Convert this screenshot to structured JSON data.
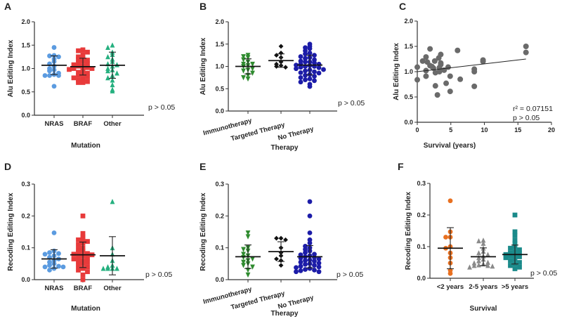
{
  "chart_data": [
    {
      "panel": "A",
      "type": "scatter",
      "ylabel": "Alu Editing Index",
      "xlabel": "Mutation",
      "ylim": [
        0,
        2.0
      ],
      "yticks": [
        "0.0",
        "0.5",
        "1.0",
        "1.5",
        "2.0"
      ],
      "annotation": [
        "p > 0.05"
      ],
      "groups": [
        {
          "name": "NRAS",
          "color": "#5b9be0",
          "marker": "circle",
          "mean": 1.07,
          "sd": 0.2,
          "values": [
            1.45,
            1.28,
            1.27,
            1.25,
            1.2,
            1.15,
            1.1,
            1.05,
            1.0,
            0.97,
            0.95,
            0.9,
            0.87,
            0.85,
            0.85,
            0.85,
            0.62
          ]
        },
        {
          "name": "BRAF",
          "color": "#e83a3a",
          "marker": "square",
          "mean": 1.04,
          "sd": 0.18,
          "values": [
            1.4,
            1.38,
            1.35,
            1.3,
            1.25,
            1.22,
            1.2,
            1.18,
            1.15,
            1.12,
            1.1,
            1.08,
            1.05,
            1.05,
            1.02,
            1.0,
            1.0,
            0.98,
            0.95,
            0.92,
            0.9,
            0.88,
            0.85,
            0.82,
            0.8,
            0.78,
            0.75,
            0.72,
            0.7,
            0.7
          ]
        },
        {
          "name": "Other",
          "color": "#25b07f",
          "marker": "triangle-up",
          "mean": 1.07,
          "sd": 0.28,
          "values": [
            1.5,
            1.45,
            1.35,
            1.3,
            1.25,
            1.2,
            1.15,
            1.1,
            1.08,
            1.05,
            1.0,
            0.97,
            0.95,
            0.9,
            0.85,
            0.8,
            0.75,
            0.65,
            0.55,
            0.52
          ]
        }
      ]
    },
    {
      "panel": "B",
      "type": "scatter",
      "ylabel": "Alu Editing Index",
      "xlabel": "Therapy",
      "ylim": [
        0,
        2.0
      ],
      "yticks": [
        "0.0",
        "0.5",
        "1.0",
        "1.5",
        "2.0"
      ],
      "annotation": [
        "p > 0.05"
      ],
      "groups": [
        {
          "name": "Immunotherapy",
          "color": "#2e8b2e",
          "marker": "triangle-down",
          "mean": 1.0,
          "sd": 0.17,
          "values": [
            1.25,
            1.22,
            1.2,
            1.15,
            1.1,
            1.05,
            1.05,
            1.02,
            1.0,
            0.95,
            0.92,
            0.9,
            0.85,
            0.8,
            0.75,
            0.72
          ]
        },
        {
          "name": "Targeted Therapy",
          "color": "#111111",
          "marker": "diamond",
          "mean": 1.13,
          "sd": 0.15,
          "values": [
            1.45,
            1.3,
            1.25,
            1.2,
            1.1,
            1.05,
            1.02,
            1.0,
            0.98
          ]
        },
        {
          "name": "No Therapy",
          "color": "#1c1ca8",
          "marker": "circle",
          "mean": 1.03,
          "sd": 0.22,
          "values": [
            1.5,
            1.45,
            1.42,
            1.4,
            1.35,
            1.3,
            1.28,
            1.25,
            1.22,
            1.2,
            1.18,
            1.15,
            1.12,
            1.1,
            1.1,
            1.08,
            1.05,
            1.05,
            1.03,
            1.02,
            1.0,
            1.0,
            0.98,
            0.97,
            0.95,
            0.93,
            0.92,
            0.9,
            0.88,
            0.86,
            0.85,
            0.82,
            0.8,
            0.78,
            0.75,
            0.72,
            0.7,
            0.68,
            0.65,
            0.6,
            0.55
          ]
        }
      ]
    },
    {
      "panel": "C",
      "type": "scatter",
      "ylabel": "Alu Editing Index",
      "xlabel": "Survival (years)",
      "ylim": [
        0,
        2.0
      ],
      "xlim": [
        0,
        20
      ],
      "yticks": [
        "0.0",
        "0.5",
        "1.0",
        "1.5",
        "2.0"
      ],
      "xticks": [
        "0",
        "5",
        "10",
        "15",
        "20"
      ],
      "annotation": [
        "r² = 0.07151",
        "p > 0.05"
      ],
      "color": "#6a6a6a",
      "regression": {
        "x": [
          0,
          16.2
        ],
        "y": [
          1.0,
          1.25
        ]
      },
      "points": [
        [
          0,
          1.09
        ],
        [
          0,
          0.84
        ],
        [
          0.8,
          1.21
        ],
        [
          1.3,
          1.29
        ],
        [
          1.5,
          1.19
        ],
        [
          1.3,
          1.02
        ],
        [
          1.3,
          0.91
        ],
        [
          1.9,
          1.45
        ],
        [
          1.9,
          1.12
        ],
        [
          2.2,
          1.1
        ],
        [
          2.4,
          1.07
        ],
        [
          2.6,
          1.21
        ],
        [
          2.7,
          0.98
        ],
        [
          2.7,
          0.72
        ],
        [
          3.0,
          0.54
        ],
        [
          3.2,
          1.27
        ],
        [
          3.5,
          1.34
        ],
        [
          3.5,
          1.17
        ],
        [
          3.5,
          1.14
        ],
        [
          3.3,
          1.08
        ],
        [
          3.3,
          1.0
        ],
        [
          4.0,
          1.03
        ],
        [
          4.3,
          0.77
        ],
        [
          4.6,
          1.09
        ],
        [
          4.9,
          0.91
        ],
        [
          4.9,
          0.61
        ],
        [
          6.0,
          1.42
        ],
        [
          6.4,
          0.85
        ],
        [
          8.5,
          1.05
        ],
        [
          8.5,
          1.0
        ],
        [
          8.5,
          0.71
        ],
        [
          9.8,
          1.23
        ],
        [
          9.8,
          1.2
        ],
        [
          16.2,
          1.5
        ],
        [
          16.2,
          1.38
        ]
      ]
    },
    {
      "panel": "D",
      "type": "scatter",
      "ylabel": "Recoding Editing Index",
      "xlabel": "Mutation",
      "ylim": [
        0,
        0.3
      ],
      "yticks": [
        "0.0",
        "0.1",
        "0.2",
        "0.3"
      ],
      "annotation": [
        "p > 0.05"
      ],
      "groups": [
        {
          "name": "NRAS",
          "color": "#5b9be0",
          "marker": "circle",
          "mean": 0.065,
          "sd": 0.029,
          "values": [
            0.147,
            0.09,
            0.085,
            0.082,
            0.08,
            0.075,
            0.07,
            0.065,
            0.06,
            0.055,
            0.05,
            0.045,
            0.042,
            0.04,
            0.04,
            0.035,
            0.03
          ]
        },
        {
          "name": "BRAF",
          "color": "#e83a3a",
          "marker": "square",
          "mean": 0.078,
          "sd": 0.04,
          "values": [
            0.2,
            0.145,
            0.135,
            0.13,
            0.125,
            0.12,
            0.115,
            0.11,
            0.1,
            0.095,
            0.09,
            0.085,
            0.082,
            0.08,
            0.078,
            0.075,
            0.07,
            0.068,
            0.065,
            0.06,
            0.058,
            0.055,
            0.05,
            0.045,
            0.04,
            0.035,
            0.03,
            0.025,
            0.015,
            0.0
          ]
        },
        {
          "name": "Other",
          "color": "#25b07f",
          "marker": "triangle-up",
          "mean": 0.075,
          "sd": 0.06,
          "values": [
            0.245,
            0.1,
            0.08,
            0.06,
            0.045,
            0.04,
            0.035,
            0.035,
            0.035,
            0.035
          ]
        }
      ]
    },
    {
      "panel": "E",
      "type": "scatter",
      "ylabel": "Recoding Editing Index",
      "xlabel": "Therapy",
      "ylim": [
        0,
        0.3
      ],
      "yticks": [
        "0.0",
        "0.1",
        "0.2",
        "0.3"
      ],
      "annotation": [
        "p > 0.05"
      ],
      "groups": [
        {
          "name": "Immunotherapy",
          "color": "#2e8b2e",
          "marker": "triangle-down",
          "mean": 0.072,
          "sd": 0.037,
          "values": [
            0.147,
            0.135,
            0.1,
            0.095,
            0.09,
            0.08,
            0.075,
            0.07,
            0.065,
            0.06,
            0.055,
            0.05,
            0.045,
            0.04,
            0.03,
            0.015
          ]
        },
        {
          "name": "Targeted Therapy",
          "color": "#111111",
          "marker": "diamond",
          "mean": 0.088,
          "sd": 0.031,
          "values": [
            0.13,
            0.13,
            0.125,
            0.1,
            0.085,
            0.075,
            0.065,
            0.06,
            0.045
          ]
        },
        {
          "name": "No Therapy",
          "color": "#1c1ca8",
          "marker": "circle",
          "mean": 0.072,
          "sd": 0.035,
          "values": [
            0.245,
            0.2,
            0.147,
            0.125,
            0.115,
            0.105,
            0.1,
            0.095,
            0.09,
            0.085,
            0.08,
            0.078,
            0.075,
            0.072,
            0.07,
            0.068,
            0.065,
            0.062,
            0.06,
            0.058,
            0.055,
            0.052,
            0.05,
            0.048,
            0.045,
            0.042,
            0.04,
            0.038,
            0.035,
            0.032,
            0.03,
            0.028,
            0.025,
            0.025
          ]
        }
      ]
    },
    {
      "panel": "F",
      "type": "scatter",
      "ylabel": "Recoding Editing Index",
      "xlabel": "Survival",
      "ylim": [
        0,
        0.3
      ],
      "yticks": [
        "0.0",
        "0.1",
        "0.2",
        "0.3"
      ],
      "annotation": [
        "p > 0.05"
      ],
      "groups": [
        {
          "name": "<2 years",
          "color": "#e87020",
          "marker": "circle",
          "mean": 0.095,
          "sd": 0.065,
          "values": [
            0.245,
            0.147,
            0.13,
            0.13,
            0.1,
            0.095,
            0.08,
            0.065,
            0.048,
            0.025,
            0.015
          ]
        },
        {
          "name": "2-5 years",
          "color": "#8a8a8a",
          "marker": "triangle-up",
          "mean": 0.068,
          "sd": 0.028,
          "values": [
            0.12,
            0.118,
            0.11,
            0.095,
            0.085,
            0.08,
            0.075,
            0.07,
            0.065,
            0.06,
            0.055,
            0.05,
            0.048,
            0.045,
            0.042,
            0.04,
            0.04,
            0.038,
            0.035
          ]
        },
        {
          "name": ">5 years",
          "color": "#1a8a8a",
          "marker": "square",
          "mean": 0.075,
          "sd": 0.03,
          "values": [
            0.2,
            0.147,
            0.135,
            0.12,
            0.11,
            0.1,
            0.095,
            0.09,
            0.085,
            0.08,
            0.078,
            0.075,
            0.072,
            0.07,
            0.068,
            0.065,
            0.06,
            0.055,
            0.05,
            0.045,
            0.04,
            0.035,
            0.03
          ]
        }
      ]
    }
  ]
}
